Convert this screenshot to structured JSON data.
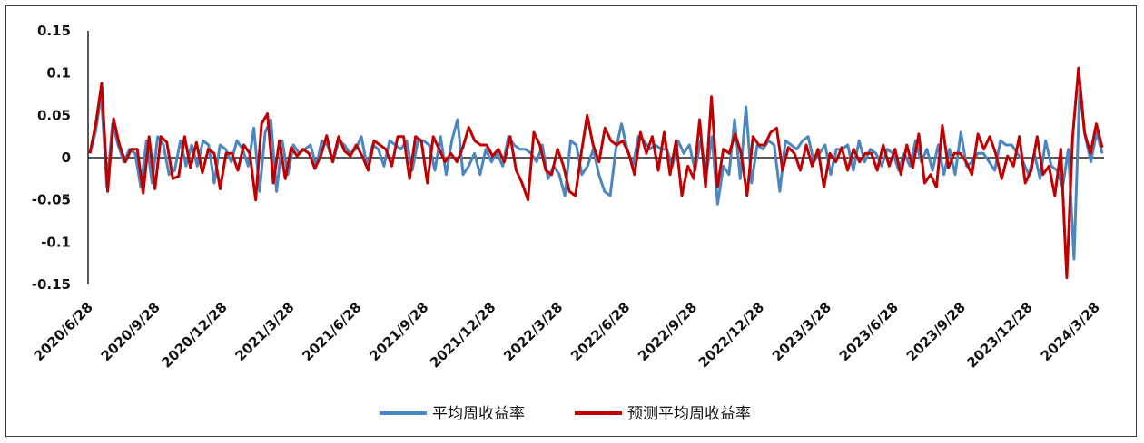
{
  "chart_data": {
    "type": "line",
    "title": "",
    "xlabel": "",
    "ylabel": "",
    "ylim": [
      -0.15,
      0.15
    ],
    "yticks": [
      "0.15",
      "0.1",
      "0.05",
      "0",
      "-0.05",
      "-0.1",
      "-0.15"
    ],
    "ytick_values": [
      0.15,
      0.1,
      0.05,
      0,
      -0.05,
      -0.1,
      -0.15
    ],
    "xtick_labels": [
      "2020/6/28",
      "2020/9/28",
      "2020/12/28",
      "2021/3/28",
      "2021/6/28",
      "2021/9/28",
      "2021/12/28",
      "2022/3/28",
      "2022/6/28",
      "2022/9/28",
      "2022/12/28",
      "2023/3/28",
      "2023/6/28",
      "2023/9/28",
      "2023/12/28",
      "2024/3/28"
    ],
    "legend_position": "bottom",
    "grid": false,
    "series": [
      {
        "name": "平均周收益率",
        "color": "#4a86c0",
        "values": [
          0.005,
          0.03,
          0.075,
          -0.035,
          0.04,
          0.015,
          -0.005,
          0.01,
          0.005,
          -0.035,
          0.02,
          -0.03,
          0.025,
          0.015,
          -0.02,
          -0.015,
          0.02,
          -0.01,
          0.015,
          -0.01,
          0.02,
          0.015,
          -0.03,
          0.015,
          0.01,
          -0.005,
          0.02,
          0.01,
          -0.01,
          0.035,
          -0.04,
          0.03,
          0.045,
          -0.04,
          0.02,
          -0.02,
          0.015,
          0.005,
          0.01,
          0.015,
          -0.01,
          0.02,
          0.015,
          -0.005,
          0.02,
          0.015,
          0.005,
          0.01,
          0.025,
          -0.01,
          0.015,
          0.01,
          -0.01,
          0.02,
          0.015,
          0.01,
          0.02,
          -0.015,
          0.02,
          0.02,
          0.015,
          -0.015,
          0.025,
          -0.02,
          0.02,
          0.045,
          -0.02,
          -0.01,
          0.005,
          -0.02,
          0.01,
          -0.005,
          0.005,
          -0.01,
          0.025,
          0.015,
          0.01,
          0.01,
          0.005,
          -0.005,
          0.015,
          -0.025,
          -0.01,
          -0.02,
          -0.045,
          0.02,
          0.015,
          -0.02,
          -0.01,
          0.01,
          -0.02,
          -0.04,
          -0.045,
          0.01,
          0.04,
          0.01,
          -0.01,
          0.025,
          0.02,
          0.01,
          0.015,
          0.01,
          0.01,
          -0.01,
          0.02,
          0.005,
          0.015,
          -0.015,
          0.02,
          -0.02,
          0.025,
          -0.055,
          -0.01,
          -0.02,
          0.045,
          -0.025,
          0.06,
          -0.03,
          0.015,
          0.01,
          0.02,
          0.015,
          -0.04,
          0.02,
          0.015,
          0.01,
          0.02,
          0.025,
          -0.005,
          0.005,
          0.015,
          -0.02,
          0.01,
          0.01,
          0.015,
          -0.015,
          0.02,
          -0.005,
          0.01,
          0.005,
          -0.01,
          0.01,
          0.005,
          -0.015,
          0.005,
          -0.01,
          0.02,
          -0.005,
          0.01,
          -0.015,
          0.015,
          -0.02,
          0.01,
          -0.02,
          0.03,
          -0.01,
          -0.005,
          0.005,
          0.005,
          -0.005,
          -0.015,
          0.02,
          0.015,
          0.015,
          0.005,
          -0.005,
          -0.02,
          0.005,
          -0.025,
          0.02,
          -0.01,
          -0.015,
          -0.035,
          0.01,
          -0.12,
          0.08,
          0.025,
          -0.005,
          0.03,
          0.005
        ]
      },
      {
        "name": "预测平均周收益率",
        "color": "#c00000",
        "values": [
          0.005,
          0.04,
          0.088,
          -0.04,
          0.046,
          0.015,
          -0.005,
          0.01,
          0.01,
          -0.042,
          0.025,
          -0.037,
          0.025,
          0.018,
          -0.025,
          -0.022,
          0.025,
          -0.012,
          0.018,
          -0.018,
          0.01,
          0.005,
          -0.037,
          0.005,
          0.005,
          -0.015,
          0.015,
          0.005,
          -0.05,
          0.04,
          0.052,
          -0.03,
          0.02,
          -0.025,
          0.012,
          0.002,
          0.01,
          0.005,
          -0.013,
          0.002,
          0.026,
          -0.005,
          0.025,
          0.008,
          0.002,
          0.015,
          0.002,
          -0.015,
          0.02,
          0.015,
          0.01,
          -0.01,
          0.025,
          0.025,
          -0.025,
          0.025,
          0.02,
          -0.03,
          0.025,
          0.01,
          -0.005,
          0.005,
          -0.005,
          0.012,
          0.036,
          0.02,
          0.015,
          0.015,
          0.002,
          0.01,
          -0.005,
          0.025,
          -0.015,
          -0.03,
          -0.05,
          0.03,
          0.015,
          -0.015,
          -0.02,
          0.01,
          -0.01,
          -0.04,
          -0.045,
          0.005,
          0.05,
          0.015,
          -0.005,
          0.035,
          0.02,
          0.015,
          0.02,
          0.005,
          -0.02,
          0.03,
          0.005,
          0.025,
          -0.015,
          0.03,
          -0.02,
          0.02,
          -0.045,
          -0.01,
          -0.025,
          0.045,
          -0.035,
          0.072,
          -0.035,
          0.01,
          0.005,
          0.028,
          0.005,
          -0.045,
          0.025,
          0.015,
          0.015,
          0.03,
          0.035,
          -0.015,
          0.012,
          0.005,
          -0.015,
          0.015,
          -0.01,
          0.01,
          -0.035,
          0.005,
          -0.005,
          0.012,
          -0.015,
          0.01,
          -0.005,
          0.005,
          0.005,
          -0.015,
          0.015,
          -0.01,
          0.01,
          -0.02,
          0.015,
          -0.012,
          0.028,
          -0.03,
          -0.02,
          -0.035,
          0.038,
          -0.012,
          0.005,
          0.005,
          -0.005,
          -0.02,
          0.028,
          0.01,
          0.025,
          0.005,
          -0.025,
          0.002,
          -0.01,
          0.025,
          -0.03,
          -0.015,
          0.025,
          -0.02,
          -0.01,
          -0.045,
          0.01,
          -0.142,
          0.025,
          0.106,
          0.03,
          0.005,
          0.04,
          0.012
        ]
      }
    ]
  }
}
